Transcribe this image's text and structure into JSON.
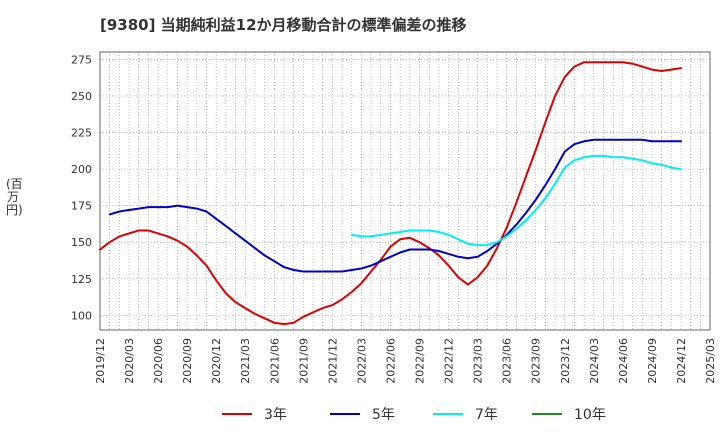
{
  "chart_data": {
    "type": "line",
    "title": "[9380]  当期純利益12か月移動合計の標準偏差の推移",
    "ylabel": "(百万円)",
    "xlabel": "",
    "ylim": [
      90,
      280
    ],
    "yticks": [
      100,
      125,
      150,
      175,
      200,
      225,
      250,
      275
    ],
    "xlim": [
      "2019-12",
      "2025-03"
    ],
    "x_ticks": [
      "2019/12",
      "2020/03",
      "2020/06",
      "2020/09",
      "2020/12",
      "2021/03",
      "2021/06",
      "2021/09",
      "2021/12",
      "2022/03",
      "2022/06",
      "2022/09",
      "2022/12",
      "2023/03",
      "2023/06",
      "2023/09",
      "2023/12",
      "2024/03",
      "2024/06",
      "2024/09",
      "2024/12",
      "2025/03"
    ],
    "grid": true,
    "legend_position": "bottom",
    "series": [
      {
        "name": "3年",
        "color": "#dd0000",
        "points": [
          [
            "2019-12",
            145
          ],
          [
            "2020-01",
            150
          ],
          [
            "2020-02",
            154
          ],
          [
            "2020-03",
            156
          ],
          [
            "2020-04",
            158
          ],
          [
            "2020-05",
            158
          ],
          [
            "2020-06",
            156
          ],
          [
            "2020-07",
            154
          ],
          [
            "2020-08",
            151
          ],
          [
            "2020-09",
            147
          ],
          [
            "2020-10",
            141
          ],
          [
            "2020-11",
            134
          ],
          [
            "2020-12",
            124
          ],
          [
            "2021-01",
            115
          ],
          [
            "2021-02",
            109
          ],
          [
            "2021-03",
            105
          ],
          [
            "2021-04",
            101
          ],
          [
            "2021-05",
            98
          ],
          [
            "2021-06",
            95
          ],
          [
            "2021-07",
            94
          ],
          [
            "2021-08",
            95
          ],
          [
            "2021-09",
            99
          ],
          [
            "2021-10",
            102
          ],
          [
            "2021-11",
            105
          ],
          [
            "2021-12",
            107
          ],
          [
            "2022-01",
            111
          ],
          [
            "2022-02",
            116
          ],
          [
            "2022-03",
            122
          ],
          [
            "2022-04",
            130
          ],
          [
            "2022-05",
            138
          ],
          [
            "2022-06",
            147
          ],
          [
            "2022-07",
            152
          ],
          [
            "2022-08",
            153
          ],
          [
            "2022-09",
            150
          ],
          [
            "2022-10",
            146
          ],
          [
            "2022-11",
            141
          ],
          [
            "2022-12",
            134
          ],
          [
            "2023-01",
            126
          ],
          [
            "2023-02",
            121
          ],
          [
            "2023-03",
            126
          ],
          [
            "2023-04",
            134
          ],
          [
            "2023-05",
            146
          ],
          [
            "2023-06",
            160
          ],
          [
            "2023-07",
            177
          ],
          [
            "2023-08",
            195
          ],
          [
            "2023-09",
            213
          ],
          [
            "2023-10",
            232
          ],
          [
            "2023-11",
            250
          ],
          [
            "2023-12",
            263
          ],
          [
            "2024-01",
            270
          ],
          [
            "2024-02",
            273
          ],
          [
            "2024-03",
            273
          ],
          [
            "2024-04",
            273
          ],
          [
            "2024-05",
            273
          ],
          [
            "2024-06",
            273
          ],
          [
            "2024-07",
            272
          ],
          [
            "2024-08",
            270
          ],
          [
            "2024-09",
            268
          ],
          [
            "2024-10",
            267
          ],
          [
            "2024-11",
            268
          ],
          [
            "2024-12",
            269
          ]
        ]
      },
      {
        "name": "5年",
        "color": "#0000cc",
        "points": [
          [
            "2020-01",
            169
          ],
          [
            "2020-02",
            171
          ],
          [
            "2020-03",
            172
          ],
          [
            "2020-04",
            173
          ],
          [
            "2020-05",
            174
          ],
          [
            "2020-06",
            174
          ],
          [
            "2020-07",
            174
          ],
          [
            "2020-08",
            175
          ],
          [
            "2020-09",
            174
          ],
          [
            "2020-10",
            173
          ],
          [
            "2020-11",
            171
          ],
          [
            "2020-12",
            166
          ],
          [
            "2021-01",
            161
          ],
          [
            "2021-02",
            156
          ],
          [
            "2021-03",
            151
          ],
          [
            "2021-04",
            146
          ],
          [
            "2021-05",
            141
          ],
          [
            "2021-06",
            137
          ],
          [
            "2021-07",
            133
          ],
          [
            "2021-08",
            131
          ],
          [
            "2021-09",
            130
          ],
          [
            "2021-10",
            130
          ],
          [
            "2021-11",
            130
          ],
          [
            "2021-12",
            130
          ],
          [
            "2022-01",
            130
          ],
          [
            "2022-02",
            131
          ],
          [
            "2022-03",
            132
          ],
          [
            "2022-04",
            134
          ],
          [
            "2022-05",
            137
          ],
          [
            "2022-06",
            140
          ],
          [
            "2022-07",
            143
          ],
          [
            "2022-08",
            145
          ],
          [
            "2022-09",
            145
          ],
          [
            "2022-10",
            145
          ],
          [
            "2022-11",
            144
          ],
          [
            "2022-12",
            142
          ],
          [
            "2023-01",
            140
          ],
          [
            "2023-02",
            139
          ],
          [
            "2023-03",
            140
          ],
          [
            "2023-04",
            144
          ],
          [
            "2023-05",
            149
          ],
          [
            "2023-06",
            155
          ],
          [
            "2023-07",
            162
          ],
          [
            "2023-08",
            170
          ],
          [
            "2023-09",
            179
          ],
          [
            "2023-10",
            189
          ],
          [
            "2023-11",
            200
          ],
          [
            "2023-12",
            212
          ],
          [
            "2024-01",
            217
          ],
          [
            "2024-02",
            219
          ],
          [
            "2024-03",
            220
          ],
          [
            "2024-04",
            220
          ],
          [
            "2024-05",
            220
          ],
          [
            "2024-06",
            220
          ],
          [
            "2024-07",
            220
          ],
          [
            "2024-08",
            220
          ],
          [
            "2024-09",
            219
          ],
          [
            "2024-10",
            219
          ],
          [
            "2024-11",
            219
          ],
          [
            "2024-12",
            219
          ]
        ]
      },
      {
        "name": "7年",
        "color": "#00eeee",
        "points": [
          [
            "2022-02",
            155
          ],
          [
            "2022-03",
            154
          ],
          [
            "2022-04",
            154
          ],
          [
            "2022-05",
            155
          ],
          [
            "2022-06",
            156
          ],
          [
            "2022-07",
            157
          ],
          [
            "2022-08",
            158
          ],
          [
            "2022-09",
            158
          ],
          [
            "2022-10",
            158
          ],
          [
            "2022-11",
            157
          ],
          [
            "2022-12",
            155
          ],
          [
            "2023-01",
            152
          ],
          [
            "2023-02",
            149
          ],
          [
            "2023-03",
            148
          ],
          [
            "2023-04",
            148
          ],
          [
            "2023-05",
            150
          ],
          [
            "2023-06",
            154
          ],
          [
            "2023-07",
            159
          ],
          [
            "2023-08",
            165
          ],
          [
            "2023-09",
            172
          ],
          [
            "2023-10",
            180
          ],
          [
            "2023-11",
            190
          ],
          [
            "2023-12",
            201
          ],
          [
            "2024-01",
            206
          ],
          [
            "2024-02",
            208
          ],
          [
            "2024-03",
            209
          ],
          [
            "2024-04",
            209
          ],
          [
            "2024-05",
            208
          ],
          [
            "2024-06",
            208
          ],
          [
            "2024-07",
            207
          ],
          [
            "2024-08",
            206
          ],
          [
            "2024-09",
            204
          ],
          [
            "2024-10",
            203
          ],
          [
            "2024-11",
            201
          ],
          [
            "2024-12",
            200
          ]
        ]
      },
      {
        "name": "10年",
        "color": "#228b22",
        "points": []
      }
    ]
  }
}
